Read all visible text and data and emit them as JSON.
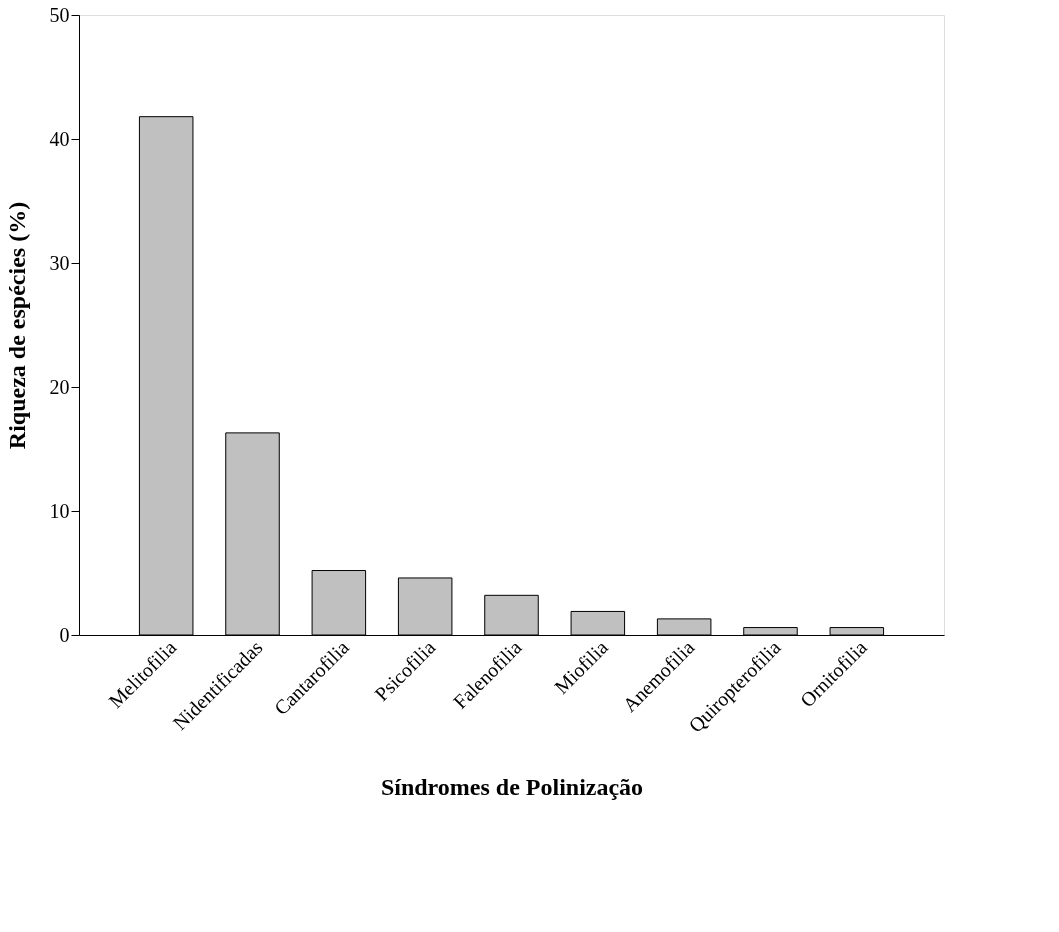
{
  "chart_data": {
    "type": "bar",
    "xlabel": "Síndromes de Polinização",
    "ylabel": "Riqueza de espécies (%)",
    "categories": [
      "Melitofilia",
      "Nidentificadas",
      "Cantarofilia",
      "Psicofilia",
      "Falenofilia",
      "Miofilia",
      "Anemofilia",
      "Quiropterofilia",
      "Ornitofilia"
    ],
    "values": [
      41.8,
      16.3,
      5.2,
      4.6,
      3.2,
      1.9,
      1.3,
      0.6,
      0.6
    ],
    "color": "#c0c0c0",
    "ylim": [
      0,
      50
    ],
    "yticks": [
      0,
      10,
      20,
      30,
      40,
      50
    ],
    "grid": false,
    "legend": false
  }
}
